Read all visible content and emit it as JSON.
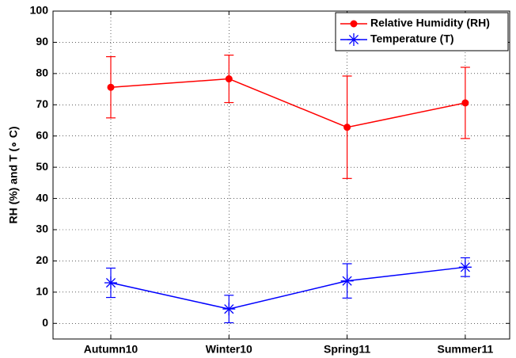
{
  "chart_data": {
    "type": "line",
    "categories": [
      "Autumn10",
      "Winter10",
      "Spring11",
      "Summer11"
    ],
    "series": [
      {
        "name": "Relative Humidity (RH)",
        "color": "#ff0000",
        "marker": "circle",
        "values": [
          75.6,
          78.3,
          62.8,
          70.6
        ],
        "errors": [
          9.8,
          7.6,
          16.4,
          11.4
        ]
      },
      {
        "name": "Temperature (T)",
        "color": "#0000ff",
        "marker": "star",
        "values": [
          13,
          4.6,
          13.6,
          18
        ],
        "errors": [
          4.7,
          4.4,
          5.5,
          3
        ]
      }
    ],
    "ylabel": "RH (%) and T (∘ C)",
    "ylim": [
      -5,
      100
    ],
    "yticks": [
      0,
      10,
      20,
      30,
      40,
      50,
      60,
      70,
      80,
      90,
      100
    ],
    "grid": true,
    "legend": "upper right"
  }
}
